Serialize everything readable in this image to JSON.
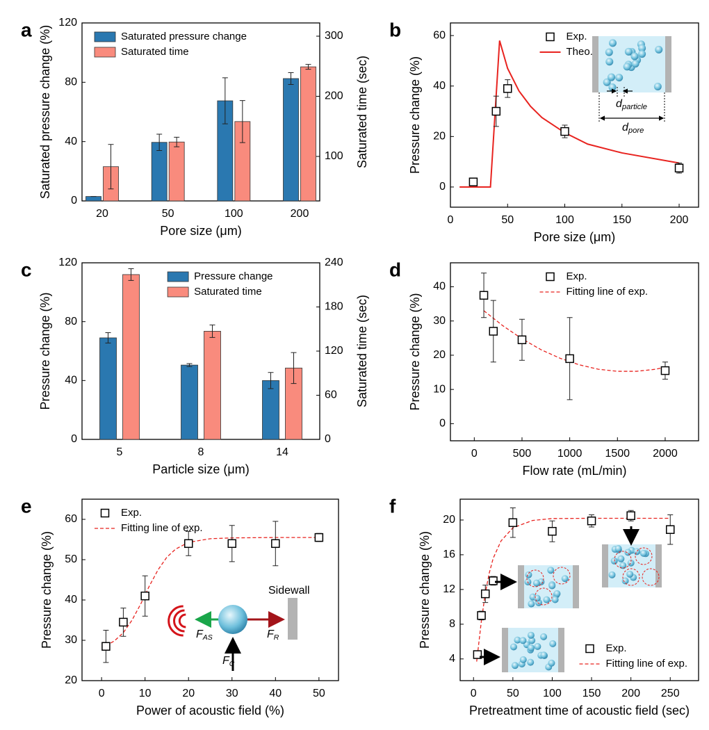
{
  "chart_data": [
    {
      "type": "bar",
      "label": "a",
      "x_label": "Pore size (μm)",
      "y_label": "Saturated pressure change (%)",
      "y2_label": "Saturated time (sec)",
      "categories": [
        "20",
        "50",
        "100",
        "200"
      ],
      "series": [
        {
          "name": "Saturated pressure change",
          "color": "#2a78b0",
          "values": [
            3,
            39.5,
            67.5,
            82.5
          ],
          "errors": [
            0,
            5.5,
            15.5,
            4
          ]
        },
        {
          "name": "Saturated time",
          "color": "#f98b7d",
          "axis": "y2",
          "values": [
            83,
            124,
            158,
            249
          ],
          "errors": [
            37,
            8,
            35,
            4
          ]
        }
      ],
      "ylim": [
        0,
        120
      ],
      "yticks": [
        0,
        40,
        80,
        120
      ],
      "y2lim": [
        26,
        322
      ],
      "y2ticks": [
        100,
        200,
        300
      ],
      "legend": "upper left"
    },
    {
      "type": "scatter",
      "label": "b",
      "x_label": "Pore size (μm)",
      "y_label": "Pressure change (%)",
      "series": [
        {
          "name": "Exp.",
          "type": "scatter",
          "color": "#000000",
          "x": [
            20,
            40,
            50,
            100,
            200
          ],
          "values": [
            2,
            30,
            39,
            22,
            7.5
          ],
          "errors": [
            0,
            6,
            3.5,
            2.5,
            2
          ]
        },
        {
          "name": "Theo.",
          "type": "line",
          "color": "#e8231f",
          "line_style": "solid",
          "x": [
            8,
            35,
            43,
            50,
            60,
            70,
            80,
            100,
            120,
            150,
            200
          ],
          "values": [
            0,
            0,
            58,
            47,
            38,
            32,
            27.5,
            21.5,
            17,
            13.5,
            9.5
          ]
        }
      ],
      "xlim": [
        0,
        217
      ],
      "xticks": [
        0,
        50,
        100,
        150,
        200
      ],
      "ylim": [
        -8,
        65
      ],
      "yticks": [
        0,
        20,
        40,
        60
      ],
      "legend": "upper center",
      "annotations": [
        {
          "main": "d",
          "sub": "particle"
        },
        {
          "main": "d",
          "sub": "pore"
        }
      ]
    },
    {
      "type": "bar",
      "label": "c",
      "x_label": "Particle size (μm)",
      "y_label": "Pressure change (%)",
      "y2_label": "Saturated time (sec)",
      "categories": [
        "5",
        "8",
        "14"
      ],
      "series": [
        {
          "name": "Pressure change",
          "color": "#2a78b0",
          "values": [
            69,
            50.5,
            40
          ],
          "errors": [
            3.5,
            1,
            5.5
          ]
        },
        {
          "name": "Saturated time",
          "color": "#f98b7d",
          "axis": "y2",
          "values": [
            224,
            147,
            97
          ],
          "errors": [
            8,
            8.5,
            21
          ]
        }
      ],
      "ylim": [
        0,
        120
      ],
      "yticks": [
        0,
        40,
        80,
        120
      ],
      "y2lim": [
        0,
        240
      ],
      "y2ticks": [
        0,
        60,
        120,
        180,
        240
      ],
      "legend": "upper center"
    },
    {
      "type": "scatter",
      "label": "d",
      "x_label": "Flow rate (mL/min)",
      "y_label": "Pressure change (%)",
      "series": [
        {
          "name": "Exp.",
          "type": "scatter",
          "color": "#000000",
          "x": [
            100,
            200,
            500,
            1000,
            2000
          ],
          "values": [
            37.5,
            27,
            24.5,
            19,
            15.5
          ],
          "errors": [
            6.5,
            9,
            6,
            12,
            2.5
          ]
        },
        {
          "name": "Fitting line of exp.",
          "type": "line",
          "color": "#e8231f",
          "line_style": "dashed",
          "x": [
            100,
            300,
            500,
            700,
            900,
            1100,
            1300,
            1500,
            1700,
            1900,
            2000
          ],
          "values": [
            33,
            28.6,
            24.8,
            21.6,
            19.1,
            17.2,
            15.9,
            15.3,
            15.3,
            15.9,
            16.5
          ]
        }
      ],
      "xlim": [
        -250,
        2350
      ],
      "xticks": [
        0,
        500,
        1000,
        1500,
        2000
      ],
      "ylim": [
        -5,
        47
      ],
      "yticks": [
        0,
        10,
        20,
        30,
        40
      ],
      "legend": "upper center"
    },
    {
      "type": "scatter",
      "label": "e",
      "x_label": "Power of acoustic field (%)",
      "y_label": "Pressure change (%)",
      "series": [
        {
          "name": "Exp.",
          "type": "scatter",
          "color": "#000000",
          "x": [
            1,
            5,
            10,
            20,
            30,
            40,
            50
          ],
          "values": [
            28.5,
            34.5,
            41,
            54,
            54,
            54,
            55.5
          ],
          "errors": [
            4,
            3.5,
            5,
            3,
            4.5,
            5.5,
            1
          ]
        },
        {
          "name": "Fitting line of exp.",
          "type": "line",
          "color": "#e8231f",
          "line_style": "dashed",
          "x": [
            1,
            3,
            5,
            7,
            9,
            11,
            13,
            15,
            17,
            20,
            25,
            30,
            40,
            50
          ],
          "values": [
            28.6,
            29.9,
            31.9,
            35,
            39,
            43.5,
            47.5,
            50.6,
            52.6,
            54.3,
            55.2,
            55.4,
            55.5,
            55.5
          ]
        }
      ],
      "xlim": [
        -4.5,
        54.5
      ],
      "xticks": [
        0,
        10,
        20,
        30,
        40,
        50
      ],
      "ylim": [
        20,
        65
      ],
      "yticks": [
        20,
        30,
        40,
        50,
        60
      ],
      "legend": "upper left",
      "annotations": [
        {
          "main": "Sidewall"
        },
        {
          "main": "F",
          "sub": "AS"
        },
        {
          "main": "F",
          "sub": "R"
        },
        {
          "main": "F",
          "sub": "C"
        }
      ]
    },
    {
      "type": "scatter",
      "label": "f",
      "x_label": "Pretreatment time of acoustic field (sec)",
      "y_label": "Pressure change (%)",
      "series": [
        {
          "name": "Exp.",
          "type": "scatter",
          "color": "#000000",
          "x": [
            5,
            10,
            15,
            25,
            50,
            100,
            150,
            200,
            250
          ],
          "values": [
            4.5,
            9,
            11.5,
            13,
            19.7,
            18.7,
            19.9,
            20.5,
            18.9
          ],
          "errors": [
            0.2,
            0.5,
            1,
            0.5,
            1.7,
            1.2,
            0.7,
            0.6,
            1.7
          ]
        },
        {
          "name": "Fitting line of exp.",
          "type": "line",
          "color": "#e8231f",
          "line_style": "dashed",
          "x": [
            4,
            10,
            15,
            20,
            25,
            35,
            50,
            75,
            100,
            150,
            200,
            250
          ],
          "values": [
            3.7,
            8.4,
            11.6,
            13.9,
            15.6,
            17.6,
            19.1,
            19.95,
            20.17,
            20.2,
            20.2,
            20.2
          ]
        }
      ],
      "xlim": [
        -17,
        286
      ],
      "xticks": [
        0,
        50,
        100,
        150,
        200,
        250
      ],
      "ylim": [
        1.5,
        22.4
      ],
      "yticks": [
        4,
        8,
        12,
        16,
        20
      ],
      "legend": "lower right"
    }
  ]
}
